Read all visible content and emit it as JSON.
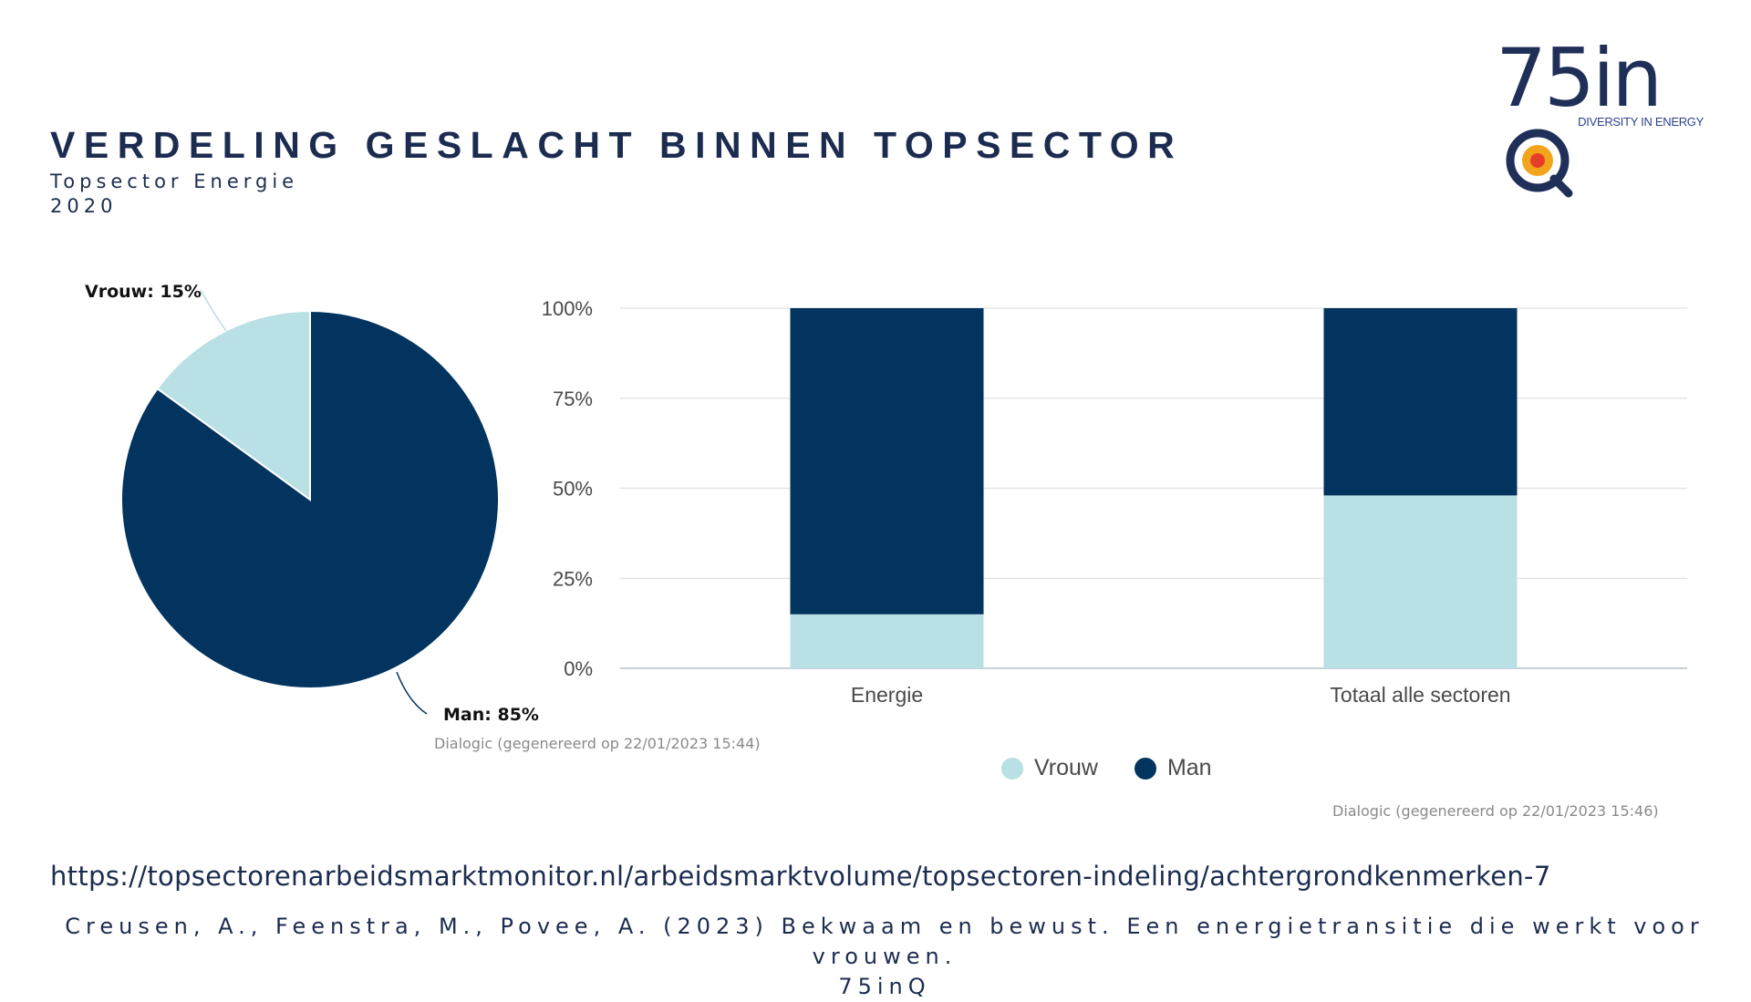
{
  "header": {
    "title": "VERDELING GESLACHT BINNEN TOPSECTOR",
    "subtitle_line1": "Topsector Energie",
    "subtitle_line2": "2020"
  },
  "logo": {
    "text": "75inQ",
    "tagline": "DIVERSITY IN ENERGY",
    "colors": {
      "navy": "#1f2f57",
      "orange": "#f2a51a",
      "red": "#e63e2c"
    }
  },
  "colors": {
    "vrouw": "#b9e0e4",
    "man": "#02345f",
    "grid": "#e0e0e0",
    "axis_text": "#4a4a4a"
  },
  "chart_data": [
    {
      "type": "pie",
      "slices": [
        {
          "name": "Vrouw",
          "value": 15,
          "label": "Vrouw: 15%"
        },
        {
          "name": "Man",
          "value": 85,
          "label": "Man: 85%"
        }
      ],
      "source": "Dialogic (gegenereerd op 22/01/2023 15:44)"
    },
    {
      "type": "bar",
      "stacked": true,
      "categories": [
        "Energie",
        "Totaal alle sectoren"
      ],
      "series": [
        {
          "name": "Vrouw",
          "values": [
            15,
            48
          ]
        },
        {
          "name": "Man",
          "values": [
            85,
            52
          ]
        }
      ],
      "ylim": [
        0,
        100
      ],
      "yticks": [
        "0%",
        "25%",
        "50%",
        "75%",
        "100%"
      ],
      "grid": true,
      "legend": "bottom",
      "source": "Dialogic (gegenereerd op 22/01/2023 15:46)"
    }
  ],
  "footer": {
    "url": "https://topsectorenarbeidsmarktmonitor.nl/arbeidsmarktvolume/topsectoren-indeling/achtergrondkenmerken-7",
    "citation_line1": "Creusen, A., Feenstra, M., Povee, A. (2023) Bekwaam en bewust. Een energietransitie die werkt voor vrouwen.",
    "citation_line2": "75inQ"
  }
}
